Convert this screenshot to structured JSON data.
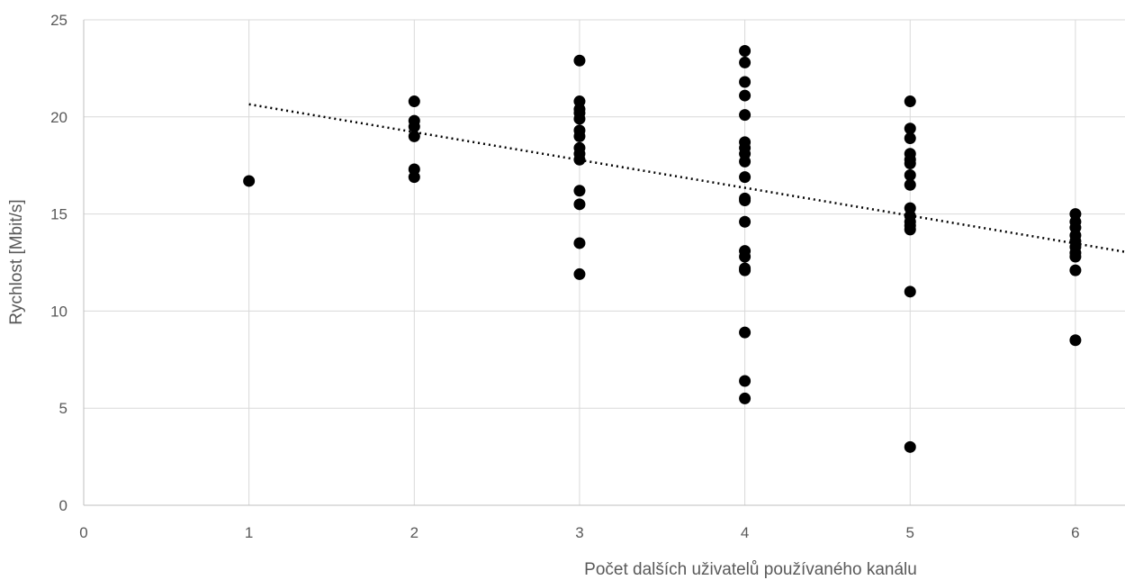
{
  "chart_data": {
    "type": "scatter",
    "title": "",
    "xlabel": "Počet dalších uživatelů používaného kanálu",
    "ylabel": "Rychlost [Mbit/s]",
    "xlim": [
      0,
      6.3
    ],
    "ylim": [
      0,
      25
    ],
    "x_ticks": [
      "0",
      "1",
      "2",
      "3",
      "4",
      "5",
      "6"
    ],
    "y_ticks": [
      "0",
      "5",
      "10",
      "15",
      "20",
      "25"
    ],
    "grid": true,
    "legend": "none",
    "series": [
      {
        "points": [
          [
            1,
            16.7
          ],
          [
            2,
            20.8
          ],
          [
            2,
            19.8
          ],
          [
            2,
            19.5
          ],
          [
            2,
            19.0
          ],
          [
            2,
            17.3
          ],
          [
            2,
            16.9
          ],
          [
            3,
            22.9
          ],
          [
            3,
            20.8
          ],
          [
            3,
            20.4
          ],
          [
            3,
            20.2
          ],
          [
            3,
            19.9
          ],
          [
            3,
            19.3
          ],
          [
            3,
            19.0
          ],
          [
            3,
            18.4
          ],
          [
            3,
            18.1
          ],
          [
            3,
            17.8
          ],
          [
            3,
            16.2
          ],
          [
            3,
            15.5
          ],
          [
            3,
            13.5
          ],
          [
            3,
            11.9
          ],
          [
            4,
            23.4
          ],
          [
            4,
            22.8
          ],
          [
            4,
            21.8
          ],
          [
            4,
            21.1
          ],
          [
            4,
            20.1
          ],
          [
            4,
            18.7
          ],
          [
            4,
            18.4
          ],
          [
            4,
            18.1
          ],
          [
            4,
            17.7
          ],
          [
            4,
            16.9
          ],
          [
            4,
            15.8
          ],
          [
            4,
            15.7
          ],
          [
            4,
            14.6
          ],
          [
            4,
            13.1
          ],
          [
            4,
            12.8
          ],
          [
            4,
            12.2
          ],
          [
            4,
            12.1
          ],
          [
            4,
            8.9
          ],
          [
            4,
            6.4
          ],
          [
            4,
            5.5
          ],
          [
            5,
            20.8
          ],
          [
            5,
            19.4
          ],
          [
            5,
            18.9
          ],
          [
            5,
            18.1
          ],
          [
            5,
            17.8
          ],
          [
            5,
            17.6
          ],
          [
            5,
            17.0
          ],
          [
            5,
            16.5
          ],
          [
            5,
            15.3
          ],
          [
            5,
            14.9
          ],
          [
            5,
            14.6
          ],
          [
            5,
            14.4
          ],
          [
            5,
            14.2
          ],
          [
            5,
            11.0
          ],
          [
            5,
            3.0
          ],
          [
            6,
            15.0
          ],
          [
            6,
            14.6
          ],
          [
            6,
            14.3
          ],
          [
            6,
            13.9
          ],
          [
            6,
            13.6
          ],
          [
            6,
            13.3
          ],
          [
            6,
            13.0
          ],
          [
            6,
            12.8
          ],
          [
            6,
            12.1
          ],
          [
            6,
            8.5
          ]
        ]
      }
    ],
    "trendline": {
      "type": "linear",
      "x_range": [
        1,
        6.3
      ],
      "y_range": [
        20.65,
        13.05
      ]
    }
  }
}
